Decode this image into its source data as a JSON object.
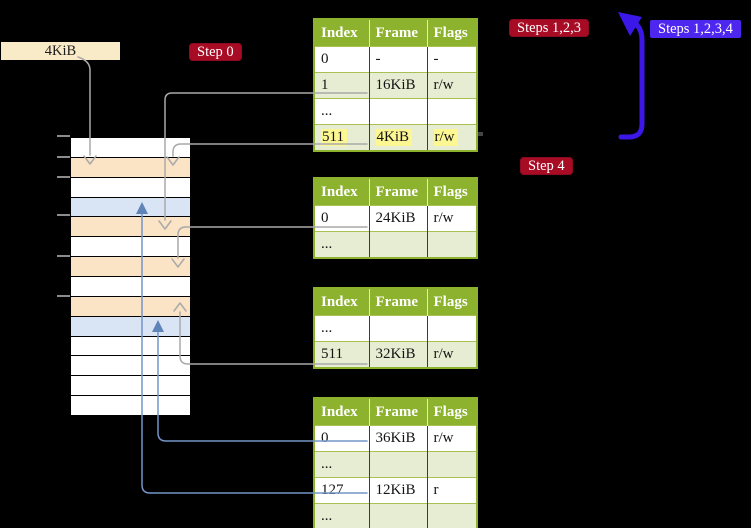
{
  "labels": {
    "frame_size": "4KiB",
    "step0": "Step 0",
    "steps123": "Steps 1,2,3",
    "steps1234": "Steps 1,2,3,4",
    "step4": "Step 4"
  },
  "colors": {
    "background": "#000000",
    "table_header_bg": "#8DB32E",
    "table_row_shade": "#E7EDD2",
    "highlight": "#FCF693",
    "memory_plain": "#FFFFFF",
    "memory_accent": "#FBE3C5",
    "memory_target": "#D9E5F4",
    "gray_line": "#A9A9A9",
    "blue_line": "#7495C8",
    "big_arrow": "#3C18E8",
    "red_label_bg": "#A80B24",
    "blue_label_bg": "#4D26EF",
    "frame_box_bg": "#F9EAC8"
  },
  "tables": [
    {
      "name": "page-table-1",
      "headers": [
        "Index",
        "Frame",
        "Flags"
      ],
      "rows": [
        {
          "cells": [
            "0",
            "-",
            "-"
          ],
          "shaded": false,
          "highlighted": false
        },
        {
          "cells": [
            "1",
            "16KiB",
            "r/w"
          ],
          "shaded": true,
          "highlighted": false
        },
        {
          "cells": [
            "...",
            "",
            ""
          ],
          "shaded": false,
          "highlighted": false
        },
        {
          "cells": [
            "511",
            "4KiB",
            "r/w"
          ],
          "shaded": true,
          "highlighted": true
        }
      ]
    },
    {
      "name": "page-table-2",
      "headers": [
        "Index",
        "Frame",
        "Flags"
      ],
      "rows": [
        {
          "cells": [
            "0",
            "24KiB",
            "r/w"
          ],
          "shaded": false,
          "highlighted": false
        },
        {
          "cells": [
            "...",
            "",
            ""
          ],
          "shaded": true,
          "highlighted": false
        }
      ]
    },
    {
      "name": "page-table-3",
      "headers": [
        "Index",
        "Frame",
        "Flags"
      ],
      "rows": [
        {
          "cells": [
            "...",
            "",
            ""
          ],
          "shaded": false,
          "highlighted": false
        },
        {
          "cells": [
            "511",
            "32KiB",
            "r/w"
          ],
          "shaded": true,
          "highlighted": false
        }
      ]
    },
    {
      "name": "page-table-4",
      "headers": [
        "Index",
        "Frame",
        "Flags"
      ],
      "rows": [
        {
          "cells": [
            "0",
            "36KiB",
            "r/w"
          ],
          "shaded": false,
          "highlighted": false
        },
        {
          "cells": [
            "...",
            "",
            ""
          ],
          "shaded": true,
          "highlighted": false
        },
        {
          "cells": [
            "127",
            "12KiB",
            "r"
          ],
          "shaded": false,
          "highlighted": false
        },
        {
          "cells": [
            "...",
            "",
            ""
          ],
          "shaded": true,
          "highlighted": false
        }
      ]
    }
  ],
  "memory": {
    "rows": [
      "plain",
      "accent",
      "plain",
      "target",
      "accent",
      "plain",
      "accent",
      "plain",
      "accent",
      "target",
      "plain",
      "plain",
      "plain",
      "plain"
    ]
  }
}
